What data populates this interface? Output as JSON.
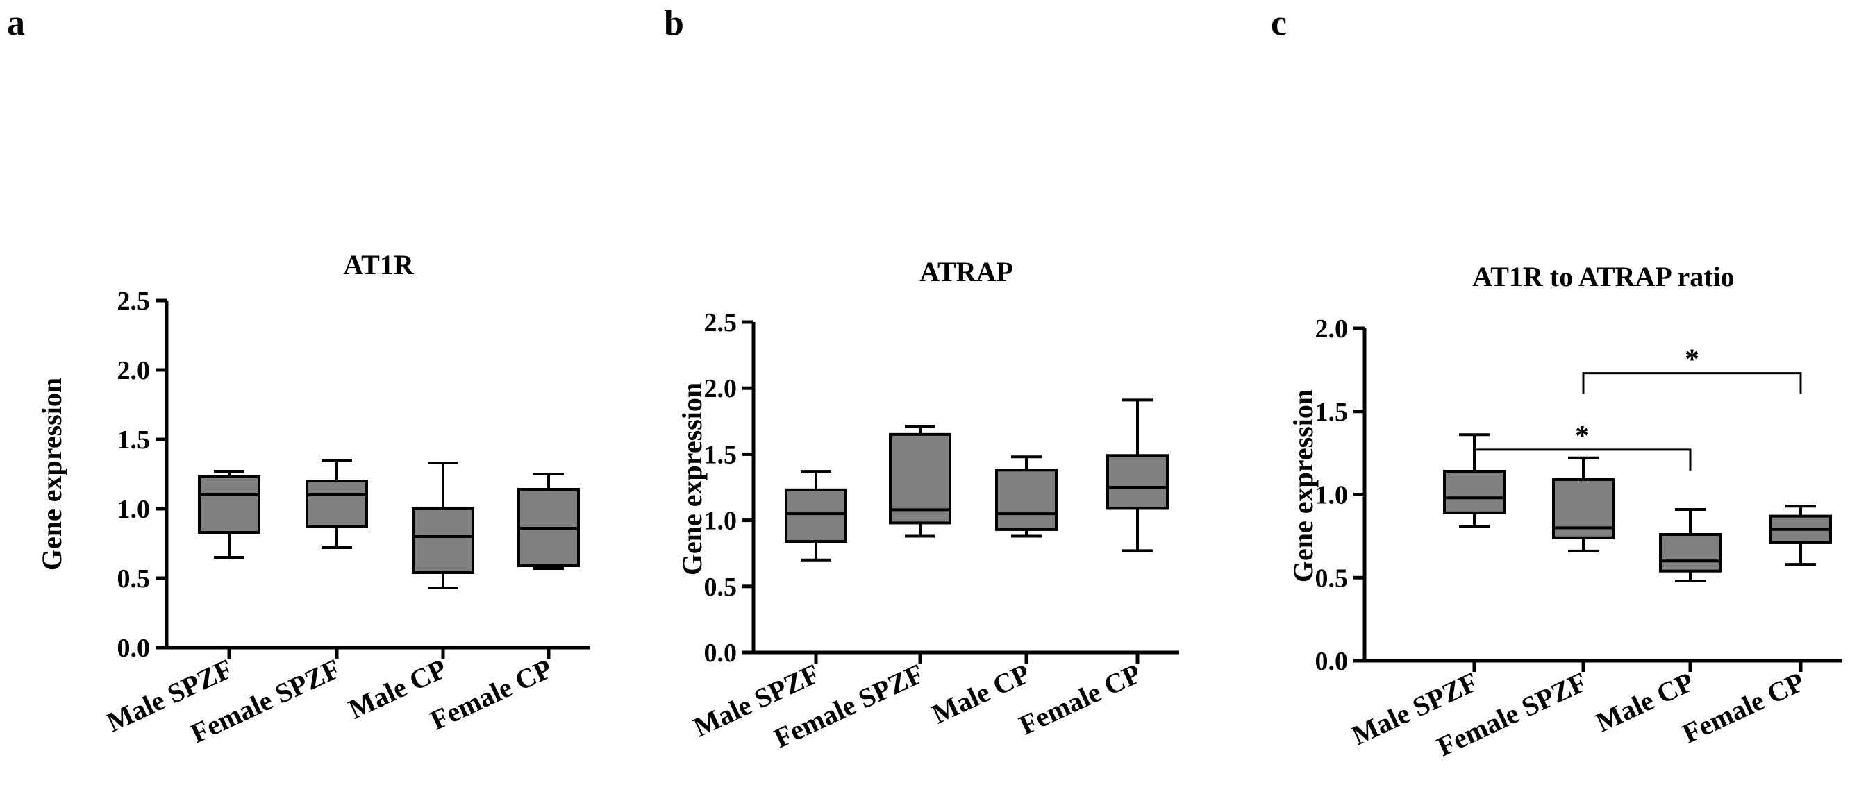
{
  "figure": {
    "panel_letters": [
      "a",
      "b",
      "c"
    ]
  },
  "colors": {
    "box_fill": "#808080",
    "stroke": "#000000",
    "background": "#ffffff"
  },
  "chart_data": [
    {
      "type": "box",
      "title": "AT1R",
      "xlabel": "",
      "ylabel": "Gene expression",
      "categories": [
        "Male SPZF",
        "Female SPZF",
        "Male CP",
        "Female CP"
      ],
      "ylim": [
        0,
        2.5
      ],
      "yticks": [
        "0.0",
        "0.5",
        "1.0",
        "1.5",
        "2.0",
        "2.5"
      ],
      "boxes": [
        {
          "min": 0.65,
          "q1": 0.83,
          "median": 1.1,
          "q3": 1.23,
          "max": 1.27
        },
        {
          "min": 0.72,
          "q1": 0.87,
          "median": 1.1,
          "q3": 1.2,
          "max": 1.35
        },
        {
          "min": 0.43,
          "q1": 0.54,
          "median": 0.8,
          "q3": 1.0,
          "max": 1.33
        },
        {
          "min": 0.57,
          "q1": 0.59,
          "median": 0.86,
          "q3": 1.14,
          "max": 1.25
        }
      ],
      "annotations": []
    },
    {
      "type": "box",
      "title": "ATRAP",
      "xlabel": "",
      "ylabel": "Gene expression",
      "categories": [
        "Male SPZF",
        "Female SPZF",
        "Male CP",
        "Female CP"
      ],
      "ylim": [
        0,
        2.5
      ],
      "yticks": [
        "0.0",
        "0.5",
        "1.0",
        "1.5",
        "2.0",
        "2.5"
      ],
      "boxes": [
        {
          "min": 0.7,
          "q1": 0.84,
          "median": 1.05,
          "q3": 1.23,
          "max": 1.37
        },
        {
          "min": 0.88,
          "q1": 0.98,
          "median": 1.08,
          "q3": 1.65,
          "max": 1.71
        },
        {
          "min": 0.88,
          "q1": 0.93,
          "median": 1.05,
          "q3": 1.38,
          "max": 1.48
        },
        {
          "min": 0.77,
          "q1": 1.09,
          "median": 1.25,
          "q3": 1.49,
          "max": 1.91
        }
      ],
      "annotations": []
    },
    {
      "type": "box",
      "title": "AT1R to ATRAP ratio",
      "xlabel": "",
      "ylabel": "Gene expression",
      "categories": [
        "Male SPZF",
        "Female SPZF",
        "Male CP",
        "Female CP"
      ],
      "ylim": [
        0,
        2.0
      ],
      "yticks": [
        "0.0",
        "0.5",
        "1.0",
        "1.5",
        "2.0"
      ],
      "boxes": [
        {
          "min": 0.81,
          "q1": 0.89,
          "median": 0.98,
          "q3": 1.14,
          "max": 1.36
        },
        {
          "min": 0.66,
          "q1": 0.74,
          "median": 0.8,
          "q3": 1.09,
          "max": 1.22
        },
        {
          "min": 0.48,
          "q1": 0.54,
          "median": 0.6,
          "q3": 0.76,
          "max": 0.91
        },
        {
          "min": 0.58,
          "q1": 0.71,
          "median": 0.79,
          "q3": 0.87,
          "max": 0.93
        }
      ],
      "annotations": [
        {
          "from": 0,
          "to": 2,
          "label": "*",
          "y": 1.27
        },
        {
          "from": 1,
          "to": 3,
          "label": "*",
          "y": 1.73
        }
      ]
    }
  ]
}
